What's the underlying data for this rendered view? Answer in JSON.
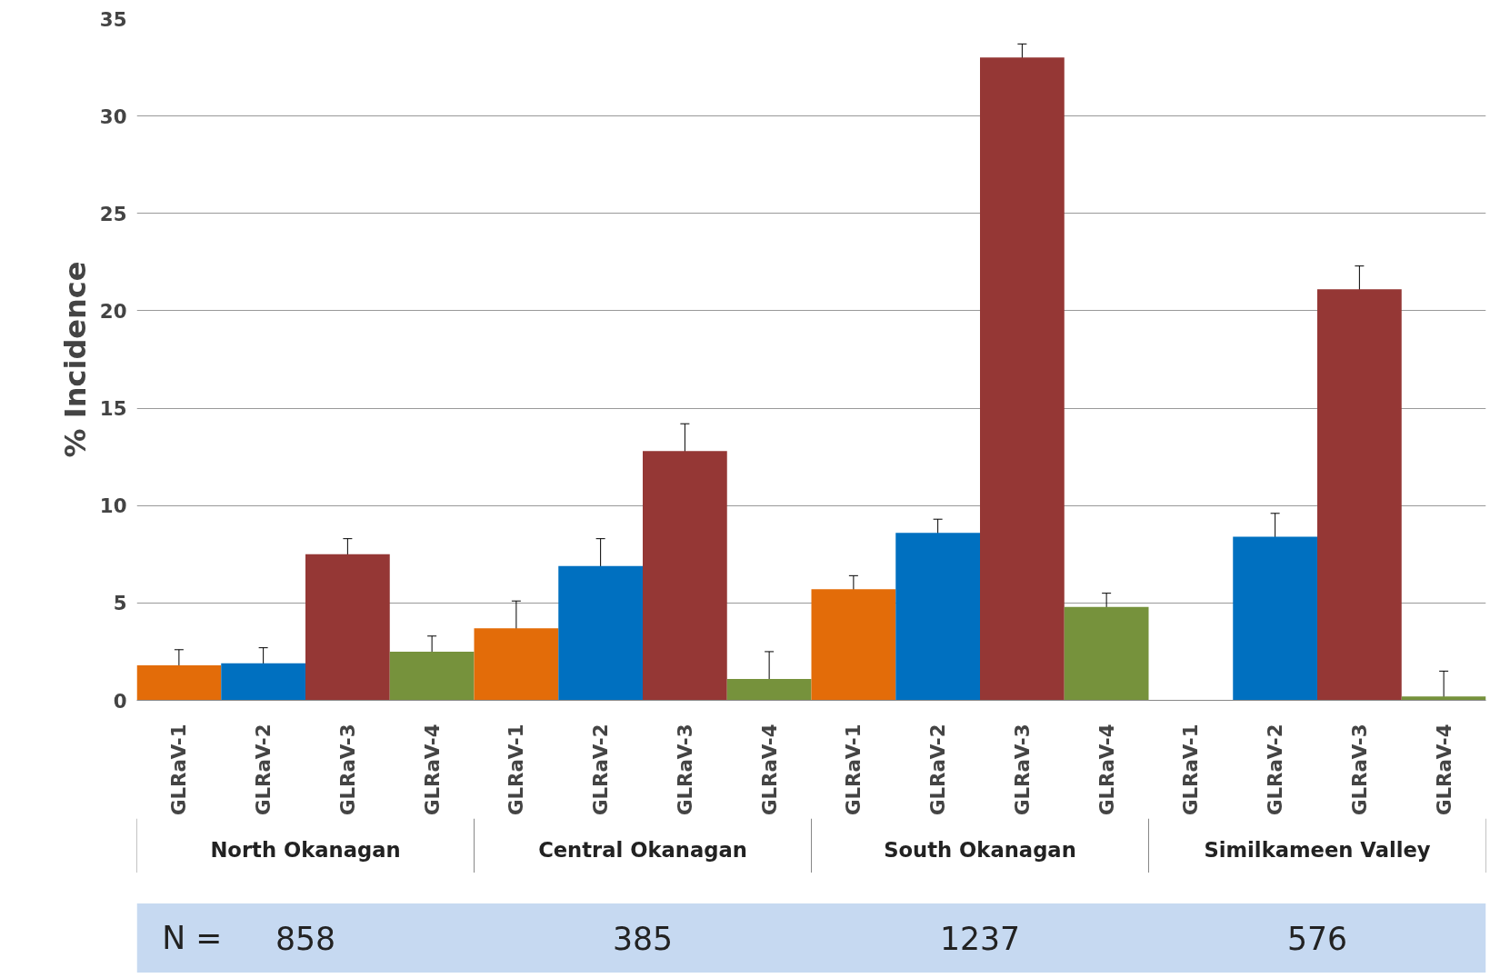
{
  "chart_data": {
    "type": "bar",
    "ylabel": "% Incidence",
    "categories": [
      "GLRaV-1",
      "GLRaV-2",
      "GLRaV-3",
      "GLRaV-4",
      "GLRaV-1",
      "GLRaV-2",
      "GLRaV-3",
      "GLRaV-4",
      "GLRaV-1",
      "GLRaV-2",
      "GLRaV-3",
      "GLRaV-4",
      "GLRaV-1",
      "GLRaV-2",
      "GLRaV-3",
      "GLRaV-4"
    ],
    "values": [
      1.8,
      1.9,
      7.5,
      2.5,
      3.7,
      6.9,
      12.8,
      1.1,
      5.7,
      8.6,
      33.0,
      4.8,
      0,
      8.4,
      21.1,
      0.2
    ],
    "errors": [
      0.8,
      0.8,
      0.8,
      0.8,
      1.4,
      1.4,
      1.4,
      [
        0,
        2.5
      ],
      0.7,
      0.7,
      0.7,
      0.7,
      null,
      1.2,
      1.2,
      [
        0,
        1.5
      ]
    ],
    "colors": [
      "#e36c09",
      "#0070c0",
      "#953735",
      "#76923c",
      "#e36c09",
      "#0070c0",
      "#953735",
      "#76923c",
      "#e36c09",
      "#0070c0",
      "#953735",
      "#76923c",
      "#e36c09",
      "#0070c0",
      "#953735",
      "#76923c"
    ],
    "ylim": [
      0,
      35
    ],
    "yticks": [
      0,
      5,
      10,
      15,
      20,
      25,
      30,
      35
    ],
    "grid": "y",
    "annotations": [
      "North Okanagan",
      "Central Okanagan",
      "South Okanagan",
      "Similkameen Valley",
      "N =",
      "858",
      "385",
      "1237",
      "576"
    ]
  }
}
